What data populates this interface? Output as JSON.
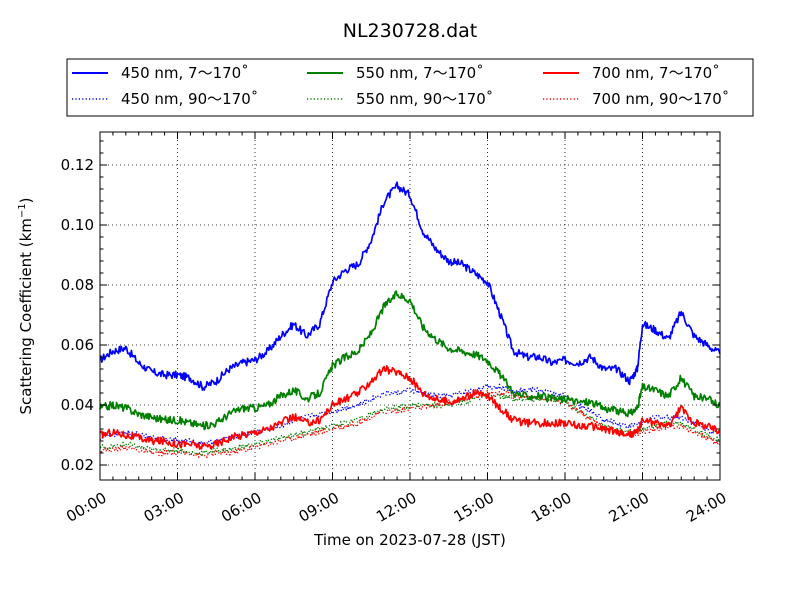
{
  "chart_data": {
    "type": "line",
    "title": "NL230728.dat",
    "xlabel": "Time on 2023-07-28 (JST)",
    "ylabel_main": "Scattering Coefficient (km",
    "ylabel_sup": "−1",
    "ylabel_close": ")",
    "x_unit": "hour",
    "xlim": [
      0,
      24
    ],
    "ylim": [
      0.015,
      0.131
    ],
    "grid": true,
    "legend_position": "top",
    "x_ticks": [
      {
        "value": 0,
        "label": "00:00"
      },
      {
        "value": 3,
        "label": "03:00"
      },
      {
        "value": 6,
        "label": "06:00"
      },
      {
        "value": 9,
        "label": "09:00"
      },
      {
        "value": 12,
        "label": "12:00"
      },
      {
        "value": 15,
        "label": "15:00"
      },
      {
        "value": 18,
        "label": "18:00"
      },
      {
        "value": 21,
        "label": "21:00"
      },
      {
        "value": 24,
        "label": "24:00"
      }
    ],
    "y_ticks": [
      {
        "value": 0.02,
        "label": "0.02"
      },
      {
        "value": 0.04,
        "label": "0.04"
      },
      {
        "value": 0.06,
        "label": "0.06"
      },
      {
        "value": 0.08,
        "label": "0.08"
      },
      {
        "value": 0.1,
        "label": "0.10"
      },
      {
        "value": 0.12,
        "label": "0.12"
      }
    ],
    "series": [
      {
        "name": "450 nm, 7～170˚",
        "color": "#0000ff",
        "style": "solid",
        "x": [
          0,
          0.5,
          1,
          1.5,
          2,
          2.5,
          3,
          3.5,
          4,
          4.5,
          5,
          5.5,
          6,
          6.5,
          7,
          7.5,
          8,
          8.5,
          9,
          9.5,
          10,
          10.5,
          11,
          11.5,
          12,
          12.5,
          13,
          13.5,
          14,
          14.5,
          15,
          15.5,
          16,
          16.5,
          17,
          17.5,
          18,
          18.5,
          19,
          19.5,
          20,
          20.5,
          20.8,
          21,
          21.5,
          22,
          22.5,
          23,
          23.5,
          24
        ],
        "y": [
          0.055,
          0.058,
          0.059,
          0.054,
          0.051,
          0.05,
          0.05,
          0.049,
          0.046,
          0.048,
          0.052,
          0.054,
          0.055,
          0.058,
          0.063,
          0.067,
          0.063,
          0.067,
          0.081,
          0.085,
          0.087,
          0.095,
          0.108,
          0.113,
          0.11,
          0.098,
          0.092,
          0.088,
          0.087,
          0.084,
          0.081,
          0.07,
          0.058,
          0.056,
          0.056,
          0.054,
          0.055,
          0.054,
          0.056,
          0.052,
          0.052,
          0.048,
          0.052,
          0.067,
          0.065,
          0.062,
          0.071,
          0.063,
          0.06,
          0.057
        ]
      },
      {
        "name": "450 nm, 90～170˚",
        "color": "#0000ff",
        "style": "dotted",
        "x": [
          0,
          0.5,
          1,
          1.5,
          2,
          2.5,
          3,
          3.5,
          4,
          4.5,
          5,
          5.5,
          6,
          6.5,
          7,
          7.5,
          8,
          8.5,
          9,
          9.5,
          10,
          10.5,
          11,
          11.5,
          12,
          12.5,
          13,
          13.5,
          14,
          14.5,
          15,
          15.5,
          16,
          16.5,
          17,
          17.5,
          18,
          18.5,
          19,
          19.5,
          20,
          20.5,
          21,
          21.5,
          22,
          22.5,
          23,
          23.5,
          24
        ],
        "y": [
          0.029,
          0.03,
          0.031,
          0.03,
          0.029,
          0.029,
          0.028,
          0.028,
          0.027,
          0.028,
          0.029,
          0.03,
          0.031,
          0.032,
          0.033,
          0.035,
          0.036,
          0.037,
          0.038,
          0.039,
          0.04,
          0.042,
          0.044,
          0.044,
          0.045,
          0.044,
          0.043,
          0.043,
          0.044,
          0.045,
          0.046,
          0.046,
          0.045,
          0.045,
          0.045,
          0.044,
          0.043,
          0.04,
          0.038,
          0.035,
          0.034,
          0.033,
          0.034,
          0.036,
          0.036,
          0.036,
          0.034,
          0.032,
          0.03
        ]
      },
      {
        "name": "550 nm, 7～170˚",
        "color": "#008000",
        "style": "solid",
        "x": [
          0,
          0.5,
          1,
          1.5,
          2,
          2.5,
          3,
          3.5,
          4,
          4.5,
          5,
          5.5,
          6,
          6.5,
          7,
          7.5,
          8,
          8.5,
          9,
          9.5,
          10,
          10.5,
          11,
          11.5,
          12,
          12.5,
          13,
          13.5,
          14,
          14.5,
          15,
          15.5,
          16,
          16.5,
          17,
          17.5,
          18,
          18.5,
          19,
          19.5,
          20,
          20.5,
          20.8,
          21,
          21.5,
          22,
          22.5,
          23,
          23.5,
          24
        ],
        "y": [
          0.039,
          0.04,
          0.039,
          0.037,
          0.036,
          0.035,
          0.035,
          0.034,
          0.033,
          0.034,
          0.037,
          0.039,
          0.039,
          0.04,
          0.043,
          0.045,
          0.042,
          0.044,
          0.053,
          0.056,
          0.058,
          0.064,
          0.073,
          0.077,
          0.075,
          0.066,
          0.062,
          0.059,
          0.058,
          0.057,
          0.055,
          0.05,
          0.044,
          0.043,
          0.043,
          0.042,
          0.042,
          0.041,
          0.041,
          0.039,
          0.038,
          0.037,
          0.039,
          0.046,
          0.045,
          0.043,
          0.049,
          0.043,
          0.042,
          0.04
        ]
      },
      {
        "name": "550 nm, 90～170˚",
        "color": "#008000",
        "style": "dotted",
        "x": [
          0,
          0.5,
          1,
          1.5,
          2,
          2.5,
          3,
          3.5,
          4,
          4.5,
          5,
          5.5,
          6,
          6.5,
          7,
          7.5,
          8,
          8.5,
          9,
          9.5,
          10,
          10.5,
          11,
          11.5,
          12,
          12.5,
          13,
          13.5,
          14,
          14.5,
          15,
          15.5,
          16,
          16.5,
          17,
          17.5,
          18,
          18.5,
          19,
          19.5,
          20,
          20.5,
          21,
          21.5,
          22,
          22.5,
          23,
          23.5,
          24
        ],
        "y": [
          0.026,
          0.026,
          0.027,
          0.026,
          0.025,
          0.025,
          0.025,
          0.024,
          0.024,
          0.025,
          0.025,
          0.026,
          0.027,
          0.028,
          0.029,
          0.03,
          0.031,
          0.032,
          0.033,
          0.034,
          0.035,
          0.037,
          0.039,
          0.039,
          0.04,
          0.04,
          0.04,
          0.04,
          0.041,
          0.042,
          0.043,
          0.043,
          0.042,
          0.042,
          0.042,
          0.042,
          0.041,
          0.038,
          0.036,
          0.033,
          0.032,
          0.031,
          0.032,
          0.033,
          0.034,
          0.034,
          0.032,
          0.03,
          0.028
        ]
      },
      {
        "name": "700 nm, 7～170˚",
        "color": "#ff0000",
        "style": "solid",
        "x": [
          0,
          0.5,
          1,
          1.5,
          2,
          2.5,
          3,
          3.5,
          4,
          4.5,
          5,
          5.5,
          6,
          6.5,
          7,
          7.5,
          8,
          8.5,
          9,
          9.5,
          10,
          10.5,
          11,
          11.5,
          12,
          12.5,
          13,
          13.5,
          14,
          14.5,
          15,
          15.5,
          16,
          16.5,
          17,
          17.5,
          18,
          18.5,
          19,
          19.5,
          20,
          20.5,
          20.8,
          21,
          21.5,
          22,
          22.5,
          23,
          23.5,
          24
        ],
        "y": [
          0.03,
          0.031,
          0.03,
          0.029,
          0.028,
          0.028,
          0.027,
          0.027,
          0.026,
          0.027,
          0.029,
          0.03,
          0.031,
          0.032,
          0.034,
          0.036,
          0.034,
          0.035,
          0.04,
          0.042,
          0.044,
          0.048,
          0.052,
          0.051,
          0.049,
          0.044,
          0.042,
          0.041,
          0.042,
          0.044,
          0.043,
          0.039,
          0.035,
          0.034,
          0.034,
          0.034,
          0.034,
          0.033,
          0.033,
          0.032,
          0.031,
          0.03,
          0.031,
          0.035,
          0.034,
          0.033,
          0.039,
          0.034,
          0.033,
          0.031
        ]
      },
      {
        "name": "700 nm, 90～170˚",
        "color": "#ff0000",
        "style": "dotted",
        "x": [
          0,
          0.5,
          1,
          1.5,
          2,
          2.5,
          3,
          3.5,
          4,
          4.5,
          5,
          5.5,
          6,
          6.5,
          7,
          7.5,
          8,
          8.5,
          9,
          9.5,
          10,
          10.5,
          11,
          11.5,
          12,
          12.5,
          13,
          13.5,
          14,
          14.5,
          15,
          15.5,
          16,
          16.5,
          17,
          17.5,
          18,
          18.5,
          19,
          19.5,
          20,
          20.5,
          21,
          21.5,
          22,
          22.5,
          23,
          23.5,
          24
        ],
        "y": [
          0.025,
          0.025,
          0.026,
          0.025,
          0.024,
          0.024,
          0.024,
          0.024,
          0.023,
          0.024,
          0.024,
          0.025,
          0.026,
          0.027,
          0.028,
          0.029,
          0.03,
          0.031,
          0.032,
          0.033,
          0.034,
          0.036,
          0.038,
          0.038,
          0.039,
          0.039,
          0.04,
          0.041,
          0.042,
          0.043,
          0.044,
          0.044,
          0.043,
          0.043,
          0.042,
          0.042,
          0.041,
          0.038,
          0.035,
          0.033,
          0.031,
          0.03,
          0.031,
          0.032,
          0.033,
          0.033,
          0.031,
          0.029,
          0.027
        ]
      }
    ]
  }
}
